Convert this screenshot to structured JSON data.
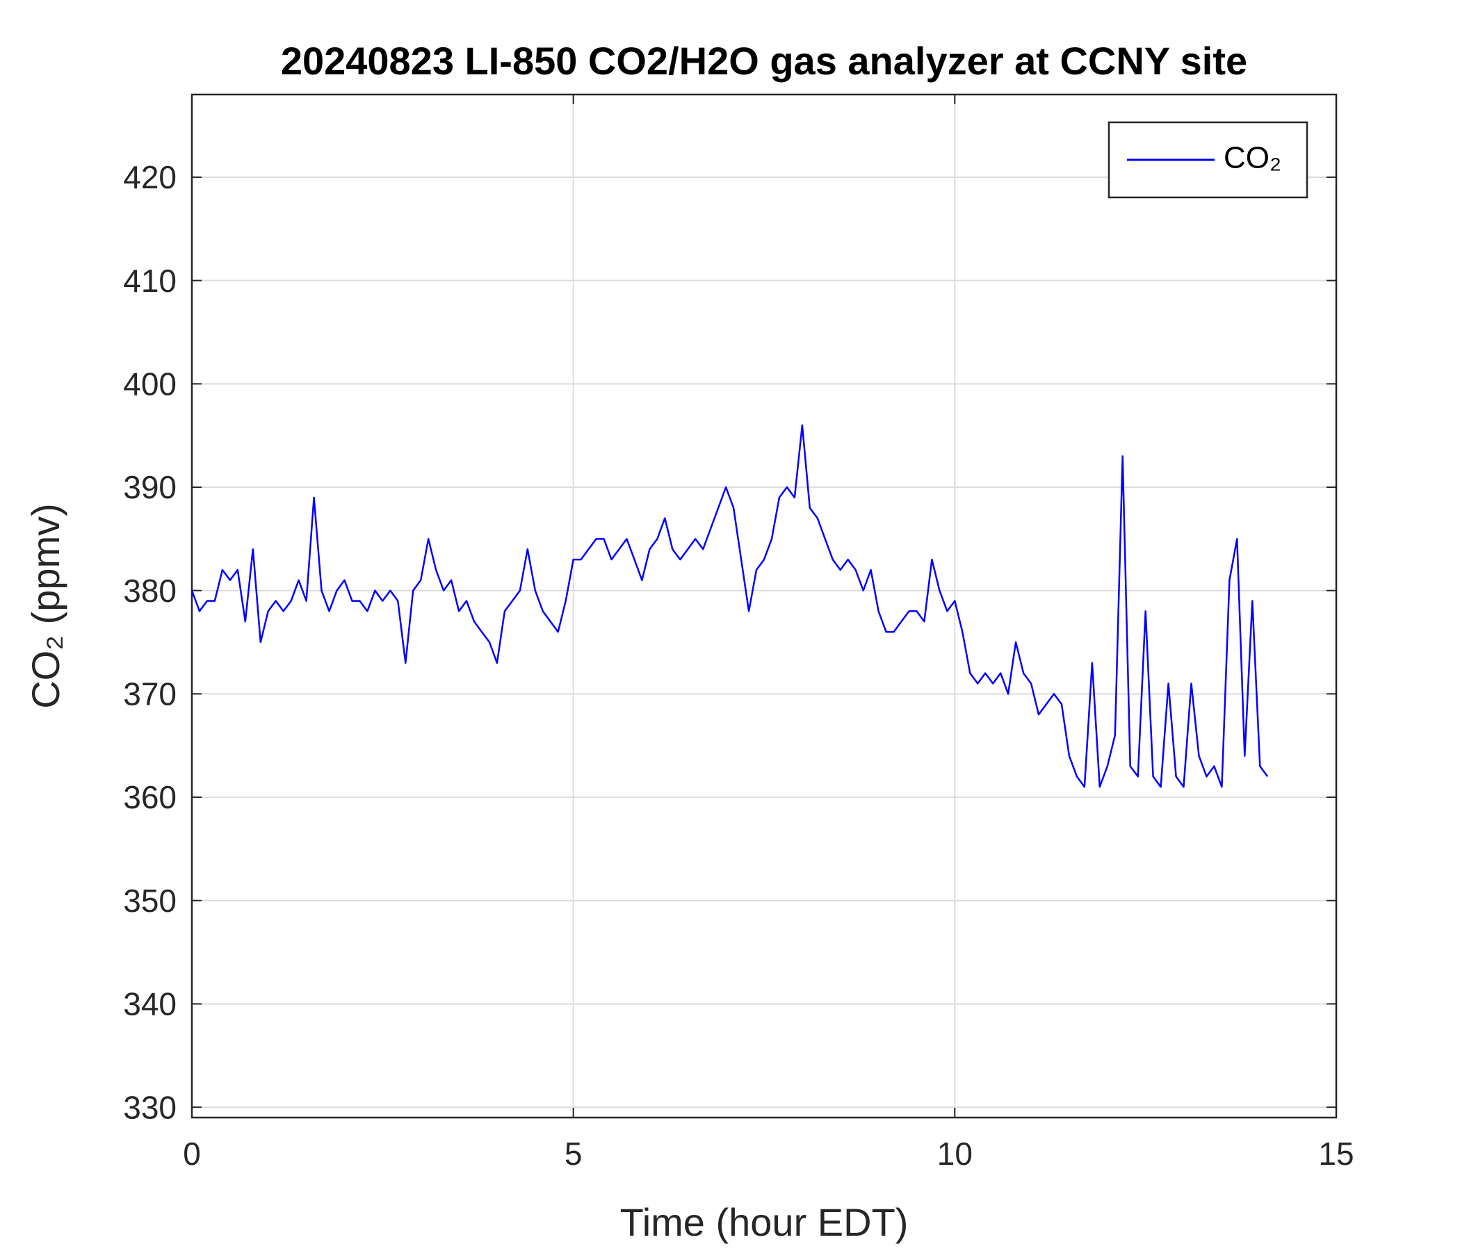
{
  "chart_data": {
    "type": "line",
    "title": "20240823 LI-850 CO2/H2O gas analyzer at CCNY site",
    "x_label": "Time (hour EDT)",
    "y_label": "CO₂ (ppmv)",
    "xlim": [
      0,
      15
    ],
    "xticks": [
      0,
      5,
      10,
      15
    ],
    "ylim": [
      329,
      428
    ],
    "yticks": [
      330,
      340,
      350,
      360,
      370,
      380,
      390,
      400,
      410,
      420
    ],
    "grid": true,
    "legend": "upper right",
    "x": [
      0,
      0.1,
      0.2,
      0.3,
      0.4,
      0.5,
      0.6,
      0.7,
      0.8,
      0.9,
      1,
      1.1,
      1.2,
      1.3,
      1.4,
      1.5,
      1.6,
      1.7,
      1.8,
      1.9,
      2,
      2.1,
      2.2,
      2.3,
      2.4,
      2.5,
      2.6,
      2.7,
      2.8,
      2.9,
      3,
      3.1,
      3.2,
      3.3,
      3.4,
      3.5,
      3.6,
      3.7,
      3.8,
      3.9,
      4,
      4.1,
      4.2,
      4.3,
      4.4,
      4.5,
      4.6,
      4.7,
      4.8,
      4.9,
      5,
      5.1,
      5.2,
      5.3,
      5.4,
      5.5,
      5.6,
      5.7,
      5.8,
      5.9,
      6,
      6.1,
      6.2,
      6.3,
      6.4,
      6.5,
      6.6,
      6.7,
      6.8,
      6.9,
      7,
      7.1,
      7.2,
      7.3,
      7.4,
      7.5,
      7.6,
      7.7,
      7.8,
      7.9,
      8,
      8.1,
      8.2,
      8.3,
      8.4,
      8.5,
      8.6,
      8.7,
      8.8,
      8.9,
      9,
      9.1,
      9.2,
      9.3,
      9.4,
      9.5,
      9.6,
      9.7,
      9.8,
      9.9,
      10,
      10.1,
      10.2,
      10.3,
      10.4,
      10.5,
      10.6,
      10.7,
      10.8,
      10.9,
      11,
      11.1,
      11.2,
      11.3,
      11.4,
      11.5,
      11.6,
      11.7,
      11.8,
      11.9,
      12,
      12.1,
      12.2,
      12.3,
      12.4,
      12.5,
      12.6,
      12.7,
      12.8,
      12.9,
      13,
      13.1,
      13.2,
      13.3,
      13.4,
      13.5,
      13.6,
      13.7,
      13.8,
      13.9,
      14,
      14.1
    ],
    "series": [
      {
        "name": "CO₂",
        "color": "#0000ff",
        "values": [
          380,
          378,
          379,
          379,
          382,
          381,
          382,
          377,
          384,
          375,
          378,
          379,
          378,
          379,
          381,
          379,
          389,
          380,
          378,
          380,
          381,
          379,
          379,
          378,
          380,
          379,
          380,
          379,
          373,
          380,
          381,
          385,
          382,
          380,
          381,
          378,
          379,
          377,
          376,
          375,
          373,
          378,
          379,
          380,
          384,
          380,
          378,
          377,
          376,
          379,
          383,
          383,
          384,
          385,
          385,
          383,
          384,
          385,
          383,
          381,
          384,
          385,
          387,
          384,
          383,
          384,
          385,
          384,
          386,
          388,
          390,
          388,
          383,
          378,
          382,
          383,
          385,
          389,
          390,
          389,
          396,
          388,
          387,
          385,
          383,
          382,
          383,
          382,
          380,
          382,
          378,
          376,
          376,
          377,
          378,
          378,
          377,
          383,
          380,
          378,
          379,
          376,
          372,
          371,
          372,
          371,
          372,
          370,
          375,
          372,
          371,
          368,
          369,
          370,
          369,
          364,
          362,
          361,
          373,
          361,
          363,
          366,
          393,
          363,
          362,
          378,
          362,
          361,
          371,
          362,
          361,
          371,
          364,
          362,
          363,
          361,
          381,
          385,
          364,
          379,
          363,
          362
        ]
      }
    ]
  }
}
